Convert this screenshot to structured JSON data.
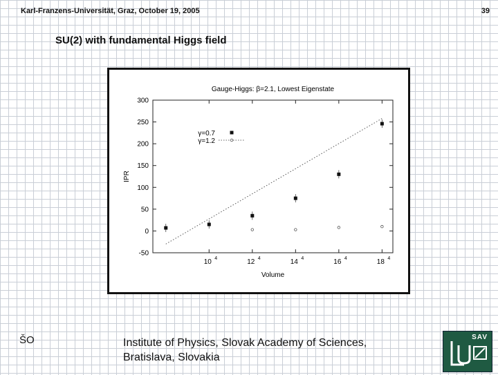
{
  "header": {
    "institution": "Karl-Franzens-Universität, Graz, October 19, 2005",
    "page_number": "39"
  },
  "slide": {
    "title": "SU(2) with fundamental Higgs field"
  },
  "footer": {
    "left_label": "ŠO",
    "line1": "Institute of Physics, Slovak Academy of Sciences,",
    "line2": "Bratislava, Slovakia",
    "logo_text": "SAV"
  },
  "chart_data": {
    "type": "scatter",
    "title": "Gauge-Higgs: β=2.1, Lowest Eigenstate",
    "xlabel": "Volume",
    "ylabel": "IPR",
    "x_scale": "power",
    "x_ticks": [
      {
        "value": 10,
        "label": "10"
      },
      {
        "value": 12,
        "label": "12"
      },
      {
        "value": 14,
        "label": "14"
      },
      {
        "value": 16,
        "label": "16"
      },
      {
        "value": 18,
        "label": "18"
      }
    ],
    "x_tick_exponent": "4",
    "ylim": [
      -50,
      300
    ],
    "y_ticks": [
      -50,
      0,
      50,
      100,
      150,
      200,
      250,
      300
    ],
    "legend_position": "upper-left",
    "series": [
      {
        "name": "γ=0.7",
        "marker": "filled-square",
        "points": [
          [
            8,
            7
          ],
          [
            10,
            15
          ],
          [
            12,
            35
          ],
          [
            14,
            75
          ],
          [
            16,
            130
          ],
          [
            18,
            246
          ]
        ]
      },
      {
        "name": "γ=1.2",
        "marker": "open-circle",
        "points": [
          [
            12,
            3
          ],
          [
            14,
            3
          ],
          [
            16,
            8
          ],
          [
            18,
            10
          ]
        ]
      }
    ],
    "fit_line": {
      "style": "dotted",
      "points": [
        [
          8,
          -30
        ],
        [
          18,
          258
        ]
      ]
    }
  }
}
